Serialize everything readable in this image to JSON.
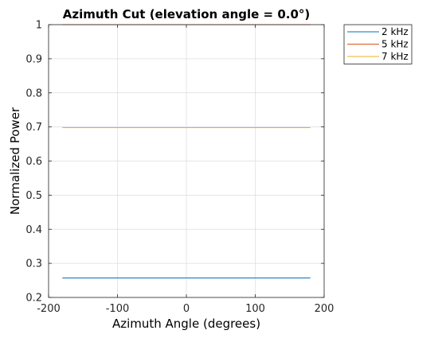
{
  "chart_data": {
    "type": "line",
    "title": "Azimuth Cut (elevation angle = 0.0°)",
    "xlabel": "Azimuth Angle (degrees)",
    "ylabel": "Normalized Power",
    "xlim": [
      -200,
      200
    ],
    "ylim": [
      0.2,
      1
    ],
    "xticks": [
      -200,
      -100,
      0,
      100,
      200
    ],
    "xtick_labels": [
      "-200",
      "-100",
      "0",
      "100",
      "200"
    ],
    "yticks": [
      0.2,
      0.3,
      0.4,
      0.5,
      0.6,
      0.7,
      0.8,
      0.9,
      1
    ],
    "ytick_labels": [
      "0.2",
      "0.3",
      "0.4",
      "0.5",
      "0.6",
      "0.7",
      "0.8",
      "0.9",
      "1"
    ],
    "grid": true,
    "legend_position": "outside-top-right",
    "series": [
      {
        "name": "2 kHz",
        "color": "#0072BD",
        "x": [
          -180,
          180
        ],
        "y": [
          0.257,
          0.257
        ]
      },
      {
        "name": "5 kHz",
        "color": "#D95319",
        "x": [
          -180,
          180
        ],
        "y": [
          1.0,
          1.0
        ]
      },
      {
        "name": "7 kHz",
        "color": "#EDB120",
        "x": [
          -180,
          180
        ],
        "y": [
          0.698,
          0.698
        ]
      }
    ]
  }
}
